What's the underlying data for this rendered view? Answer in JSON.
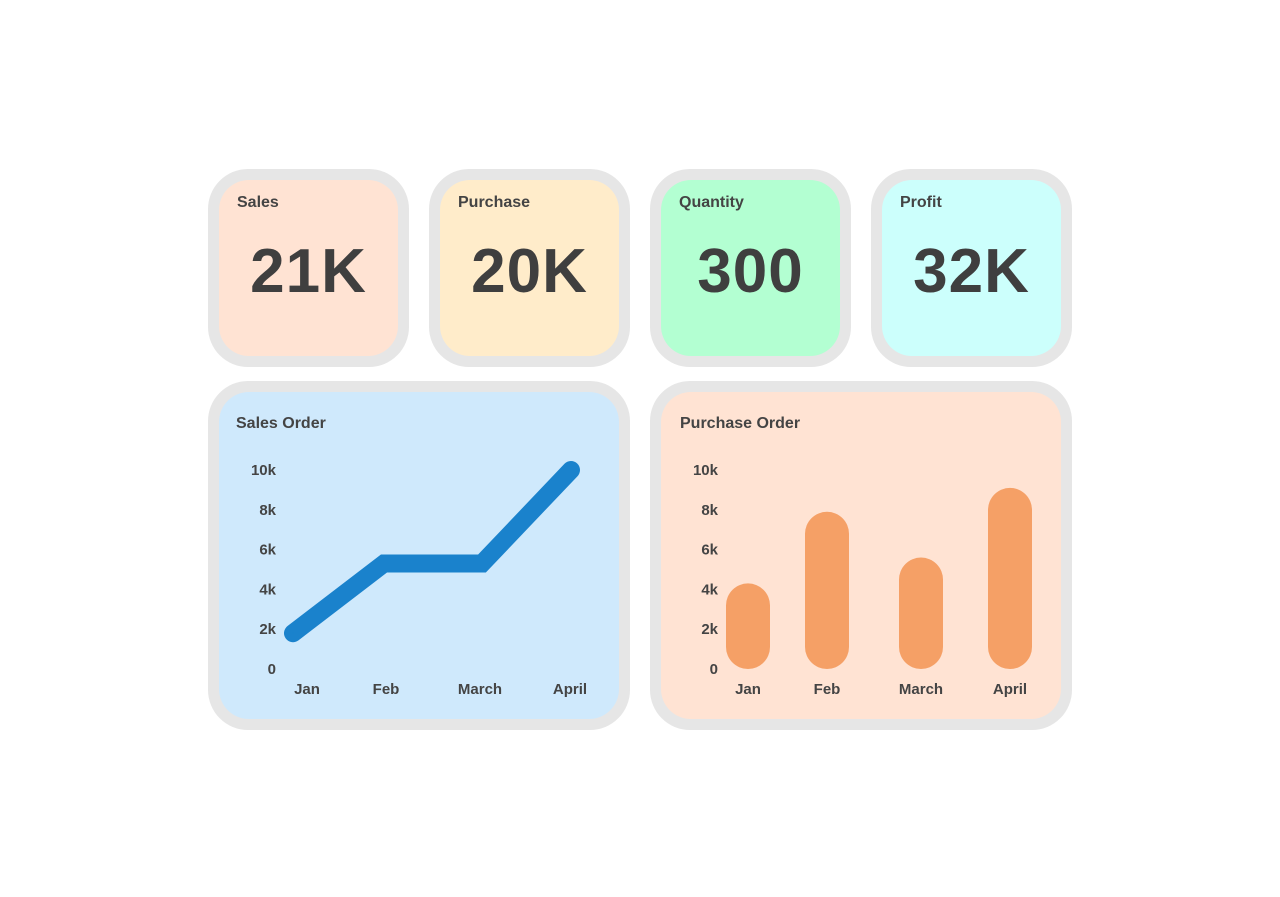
{
  "kpis": [
    {
      "label": "Sales",
      "value": "21K",
      "color": "#ffe3d3"
    },
    {
      "label": "Purchase",
      "value": "20K",
      "color": "#ffecca"
    },
    {
      "label": "Quantity",
      "value": "300",
      "color": "#b3ffd2"
    },
    {
      "label": "Profit",
      "value": "32K",
      "color": "#ccfffc"
    }
  ],
  "charts": {
    "sales_order": {
      "title": "Sales Order",
      "bg": "#cfe9fc",
      "line_color": "#1a82cc"
    },
    "purchase_order": {
      "title": "Purchase Order",
      "bg": "#ffe3d3",
      "bar_color": "#f5a066"
    }
  },
  "chart_data": [
    {
      "type": "line",
      "title": "Sales Order",
      "categories": [
        "Jan",
        "Feb",
        "March",
        "April"
      ],
      "values": [
        1800,
        5300,
        5300,
        10000
      ],
      "ylim": [
        0,
        10000
      ],
      "yticks": [
        "0",
        "2k",
        "4k",
        "6k",
        "8k",
        "10k"
      ],
      "grid": false
    },
    {
      "type": "bar",
      "title": "Purchase Order",
      "categories": [
        "Jan",
        "Feb",
        "March",
        "April"
      ],
      "values": [
        4300,
        7900,
        5600,
        9100
      ],
      "ylim": [
        0,
        10000
      ],
      "yticks": [
        "0",
        "2k",
        "4k",
        "6k",
        "8k",
        "10k"
      ],
      "grid": false
    }
  ]
}
